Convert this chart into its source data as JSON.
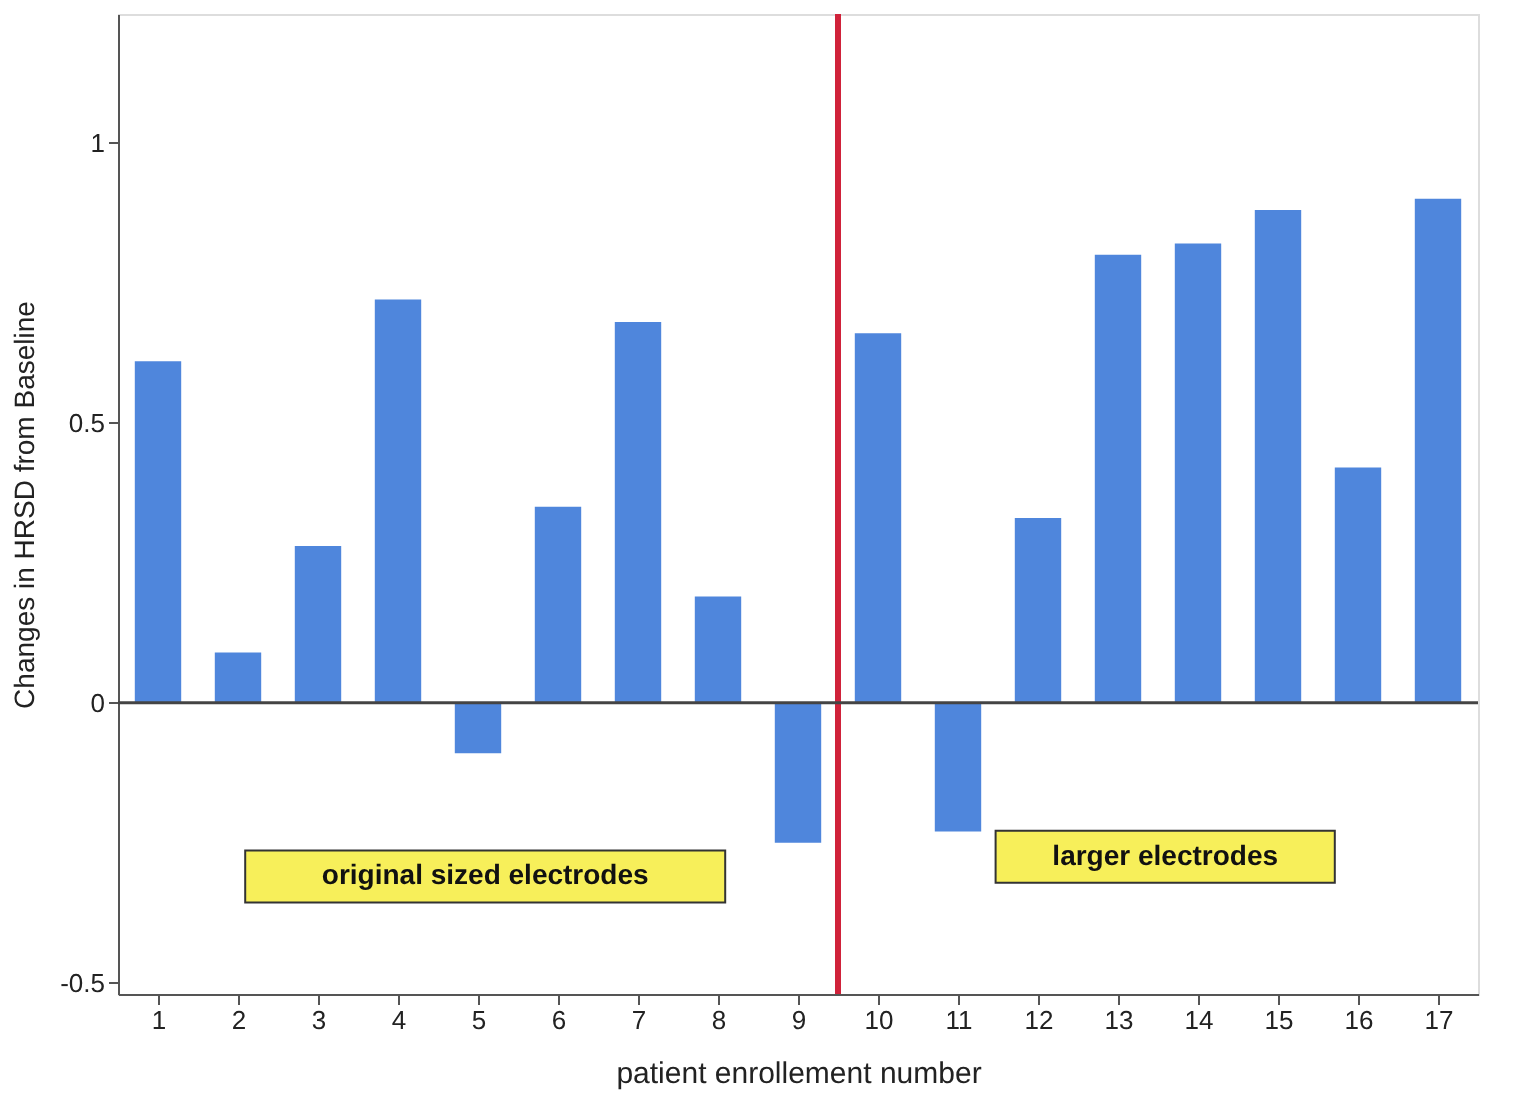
{
  "chart_data": {
    "type": "bar",
    "xlabel": "patient enrollement number",
    "ylabel": "Changes in HRSD from Baseline",
    "x": [
      1,
      2,
      3,
      4,
      5,
      6,
      7,
      8,
      9,
      10,
      11,
      12,
      13,
      14,
      15,
      16,
      17
    ],
    "values": [
      0.61,
      0.09,
      0.28,
      0.72,
      -0.09,
      0.35,
      0.68,
      0.19,
      -0.25,
      0.66,
      -0.23,
      0.33,
      0.8,
      0.82,
      0.88,
      0.42,
      0.9
    ],
    "color": "#4f86dc",
    "xlim": [
      0.5,
      17.5
    ],
    "xticks": [
      1,
      2,
      3,
      4,
      5,
      6,
      7,
      8,
      9,
      10,
      11,
      12,
      13,
      14,
      15,
      16,
      17
    ],
    "ylim": [
      -0.52,
      1.23
    ],
    "yticks": [
      -0.5,
      0,
      0.5,
      1
    ],
    "ref_lines": [
      {
        "axis": "x",
        "value": 9.5,
        "color": "#d0223a"
      },
      {
        "axis": "y",
        "value": 0,
        "color": "#444444"
      }
    ],
    "annotations": [
      "original sized electrodes",
      "larger electrodes"
    ],
    "grid": false
  }
}
